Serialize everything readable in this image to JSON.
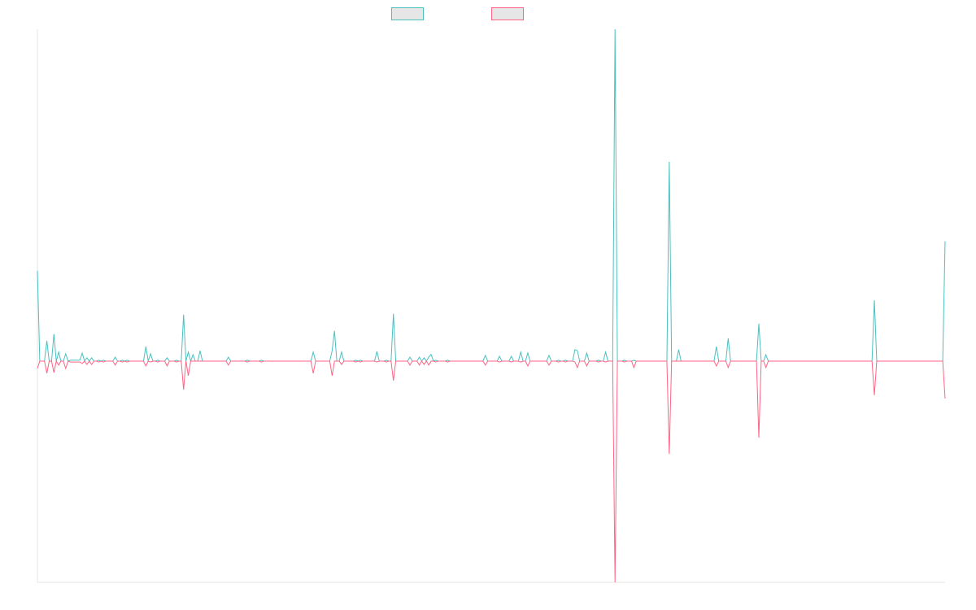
{
  "colors": {
    "series_a": "#4bc0c0",
    "series_b": "#ff6384",
    "axis": "#e6e6e6",
    "legend_fill": "#e6e6e6"
  },
  "chart_data": {
    "type": "line",
    "title": "",
    "xlabel": "",
    "ylabel": "",
    "grid": false,
    "legend_position": "top-center",
    "ylim": [
      -100,
      150
    ],
    "series": [
      {
        "name": "",
        "color": "#4bc0c0",
        "values": [
          40.9,
          0,
          0,
          0,
          9.2,
          0,
          0,
          12.2,
          0,
          4.1,
          0,
          0,
          3.3,
          0,
          0.4,
          0.4,
          0.4,
          0.4,
          0.4,
          3.6,
          0,
          1.5,
          0,
          1.5,
          0,
          0,
          0.4,
          0,
          0.4,
          0,
          0,
          0,
          0,
          1.8,
          0,
          0,
          0.4,
          0,
          0.4,
          0,
          0,
          0,
          0,
          0,
          0,
          0,
          6.6,
          0,
          3.3,
          0,
          0,
          0.4,
          0,
          0,
          0,
          1.5,
          0,
          0,
          0,
          0.4,
          0,
          0,
          21.0,
          0,
          4.1,
          0,
          2.9,
          0,
          0,
          4.7,
          0,
          0,
          0,
          0,
          0,
          0,
          0,
          0,
          0,
          0,
          0,
          1.8,
          0,
          0,
          0,
          0,
          0,
          0,
          0,
          0.4,
          0,
          0,
          0,
          0,
          0,
          0.4,
          0,
          0,
          0,
          0,
          0,
          0,
          0,
          0,
          0,
          0,
          0,
          0,
          0,
          0,
          0,
          0,
          0,
          0,
          0,
          0,
          0,
          4.1,
          0,
          0,
          0,
          0,
          0,
          0,
          0,
          4.7,
          13.7,
          0,
          0,
          4.1,
          0,
          0,
          0,
          0,
          0,
          0.4,
          0,
          0.4,
          0,
          0,
          0,
          0,
          0,
          0,
          4.4,
          0,
          0,
          0,
          0.4,
          0,
          0,
          21.4,
          0,
          0,
          0,
          0,
          0,
          0,
          1.8,
          0,
          0,
          0,
          1.8,
          0,
          1.5,
          0,
          1.8,
          3.0,
          0,
          0.4,
          0,
          0,
          0,
          0,
          0.4,
          0,
          0,
          0,
          0,
          0,
          0,
          0,
          0,
          0,
          0,
          0,
          0,
          0,
          0,
          0,
          2.6,
          0,
          0,
          0,
          0,
          0,
          2.2,
          0,
          0,
          0,
          0,
          2.2,
          0,
          0,
          0,
          4.1,
          0,
          0,
          3.7,
          0,
          0,
          0,
          0,
          0,
          0,
          0,
          0,
          2.6,
          0,
          0,
          0,
          0.4,
          0,
          0,
          0.4,
          0,
          0,
          0,
          5.2,
          4.8,
          0,
          0,
          0,
          3.7,
          0,
          0,
          0,
          0,
          0.4,
          0,
          0,
          4.1,
          0,
          0,
          0,
          150.0,
          0,
          0,
          0,
          0.4,
          0,
          0,
          0,
          0.4,
          0,
          0,
          0,
          0,
          0,
          0,
          0,
          0,
          0,
          0,
          0,
          0,
          0,
          0,
          90.1,
          0,
          0,
          0,
          5.2,
          0,
          0,
          0,
          0,
          0,
          0,
          0,
          0,
          0,
          0,
          0,
          0,
          0,
          0,
          0,
          6.6,
          0,
          0,
          0,
          0,
          10.3,
          0,
          0,
          0,
          0,
          0,
          0,
          0,
          0,
          0,
          0,
          0,
          0,
          16.9,
          0,
          0,
          2.9,
          0,
          0,
          0,
          0,
          0,
          0,
          0,
          0,
          0,
          0,
          0,
          0,
          0,
          0,
          0,
          0,
          0,
          0,
          0,
          0,
          0,
          0,
          0,
          0,
          0,
          0,
          0,
          0,
          0,
          0,
          0,
          0,
          0,
          0,
          0,
          0,
          0,
          0,
          0,
          0,
          0,
          0,
          0,
          0,
          0,
          27.5,
          0,
          0,
          0,
          0,
          0,
          0,
          0,
          0,
          0,
          0,
          0,
          0,
          0,
          0,
          0,
          0,
          0,
          0,
          0,
          0,
          0,
          0,
          0,
          0,
          0,
          0,
          0,
          0,
          0,
          54.2
        ]
      },
      {
        "name": "",
        "color": "#ff6384",
        "values": [
          -3.3,
          0,
          0,
          0,
          -5.5,
          0,
          0,
          -5.2,
          0,
          -1.8,
          0,
          0,
          -3.3,
          0,
          -0.4,
          -0.4,
          -0.4,
          -0.4,
          -0.4,
          -1.1,
          0,
          -1.5,
          0,
          -1.5,
          0,
          0,
          -0.4,
          0,
          -0.4,
          0,
          0,
          0,
          0,
          -1.8,
          0,
          0,
          -0.4,
          0,
          -0.4,
          0,
          0,
          0,
          0,
          0,
          0,
          0,
          -2.2,
          0,
          -0.4,
          0,
          0,
          -0.4,
          0,
          0,
          0,
          -2.2,
          0,
          0,
          0,
          -0.4,
          0,
          0,
          -12.9,
          0,
          -6.6,
          0,
          0,
          0,
          0,
          0,
          0,
          0,
          0,
          0,
          0,
          0,
          0,
          0,
          0,
          0,
          0,
          -1.8,
          0,
          0,
          0,
          0,
          0,
          0,
          0,
          -0.4,
          0,
          0,
          0,
          0,
          0,
          -0.4,
          0,
          0,
          0,
          0,
          0,
          0,
          0,
          0,
          0,
          0,
          0,
          0,
          0,
          0,
          0,
          0,
          0,
          0,
          0,
          0,
          0,
          -5.5,
          0,
          0,
          0,
          0,
          0,
          0,
          0,
          -6.6,
          0,
          0,
          0,
          -1.5,
          0,
          0,
          0,
          0,
          0,
          -0.4,
          0,
          -0.4,
          0,
          0,
          0,
          0,
          0,
          0,
          -0.4,
          0,
          0,
          0,
          -0.4,
          0,
          0,
          -8.8,
          0,
          0,
          0,
          0,
          0,
          0,
          -1.8,
          0,
          0,
          0,
          -1.8,
          0,
          -1.5,
          0,
          -1.8,
          0,
          0,
          -0.4,
          0,
          0,
          0,
          0,
          -0.4,
          0,
          0,
          0,
          0,
          0,
          0,
          0,
          0,
          0,
          0,
          0,
          0,
          0,
          0,
          0,
          -1.8,
          0,
          0,
          0,
          0,
          0,
          -0.4,
          0,
          0,
          0,
          0,
          -0.4,
          0,
          0,
          0,
          -0.4,
          0,
          0,
          -2.2,
          0,
          0,
          0,
          0,
          0,
          0,
          0,
          0,
          -1.8,
          0,
          0,
          0,
          -0.4,
          0,
          0,
          -0.4,
          0,
          0,
          0,
          -0.4,
          -2.9,
          0,
          0,
          0,
          -2.2,
          0,
          0,
          0,
          0,
          -0.4,
          0,
          0,
          -0.4,
          0,
          0,
          0,
          -100.0,
          0,
          0,
          0,
          -0.4,
          0,
          0,
          0,
          -2.9,
          0,
          0,
          0,
          0,
          0,
          0,
          0,
          0,
          0,
          0,
          0,
          0,
          0,
          0,
          -42.0,
          0,
          0,
          0,
          0,
          0,
          0,
          0,
          0,
          0,
          0,
          0,
          0,
          0,
          0,
          0,
          0,
          0,
          0,
          0,
          -2.2,
          0,
          0,
          0,
          0,
          -2.9,
          0,
          0,
          0,
          0,
          0,
          0,
          0,
          0,
          0,
          0,
          0,
          0,
          -34.6,
          0,
          0,
          -2.9,
          0,
          0,
          0,
          0,
          0,
          0,
          0,
          0,
          0,
          0,
          0,
          0,
          0,
          0,
          0,
          0,
          0,
          0,
          0,
          0,
          0,
          0,
          0,
          0,
          0,
          0,
          0,
          0,
          0,
          0,
          0,
          0,
          0,
          0,
          0,
          0,
          0,
          0,
          0,
          0,
          0,
          0,
          0,
          0,
          0,
          -15.4,
          0,
          0,
          0,
          0,
          0,
          0,
          0,
          0,
          0,
          0,
          0,
          0,
          0,
          0,
          0,
          0,
          0,
          0,
          0,
          0,
          0,
          0,
          0,
          0,
          0,
          0,
          0,
          0,
          0,
          -16.9
        ]
      }
    ]
  }
}
